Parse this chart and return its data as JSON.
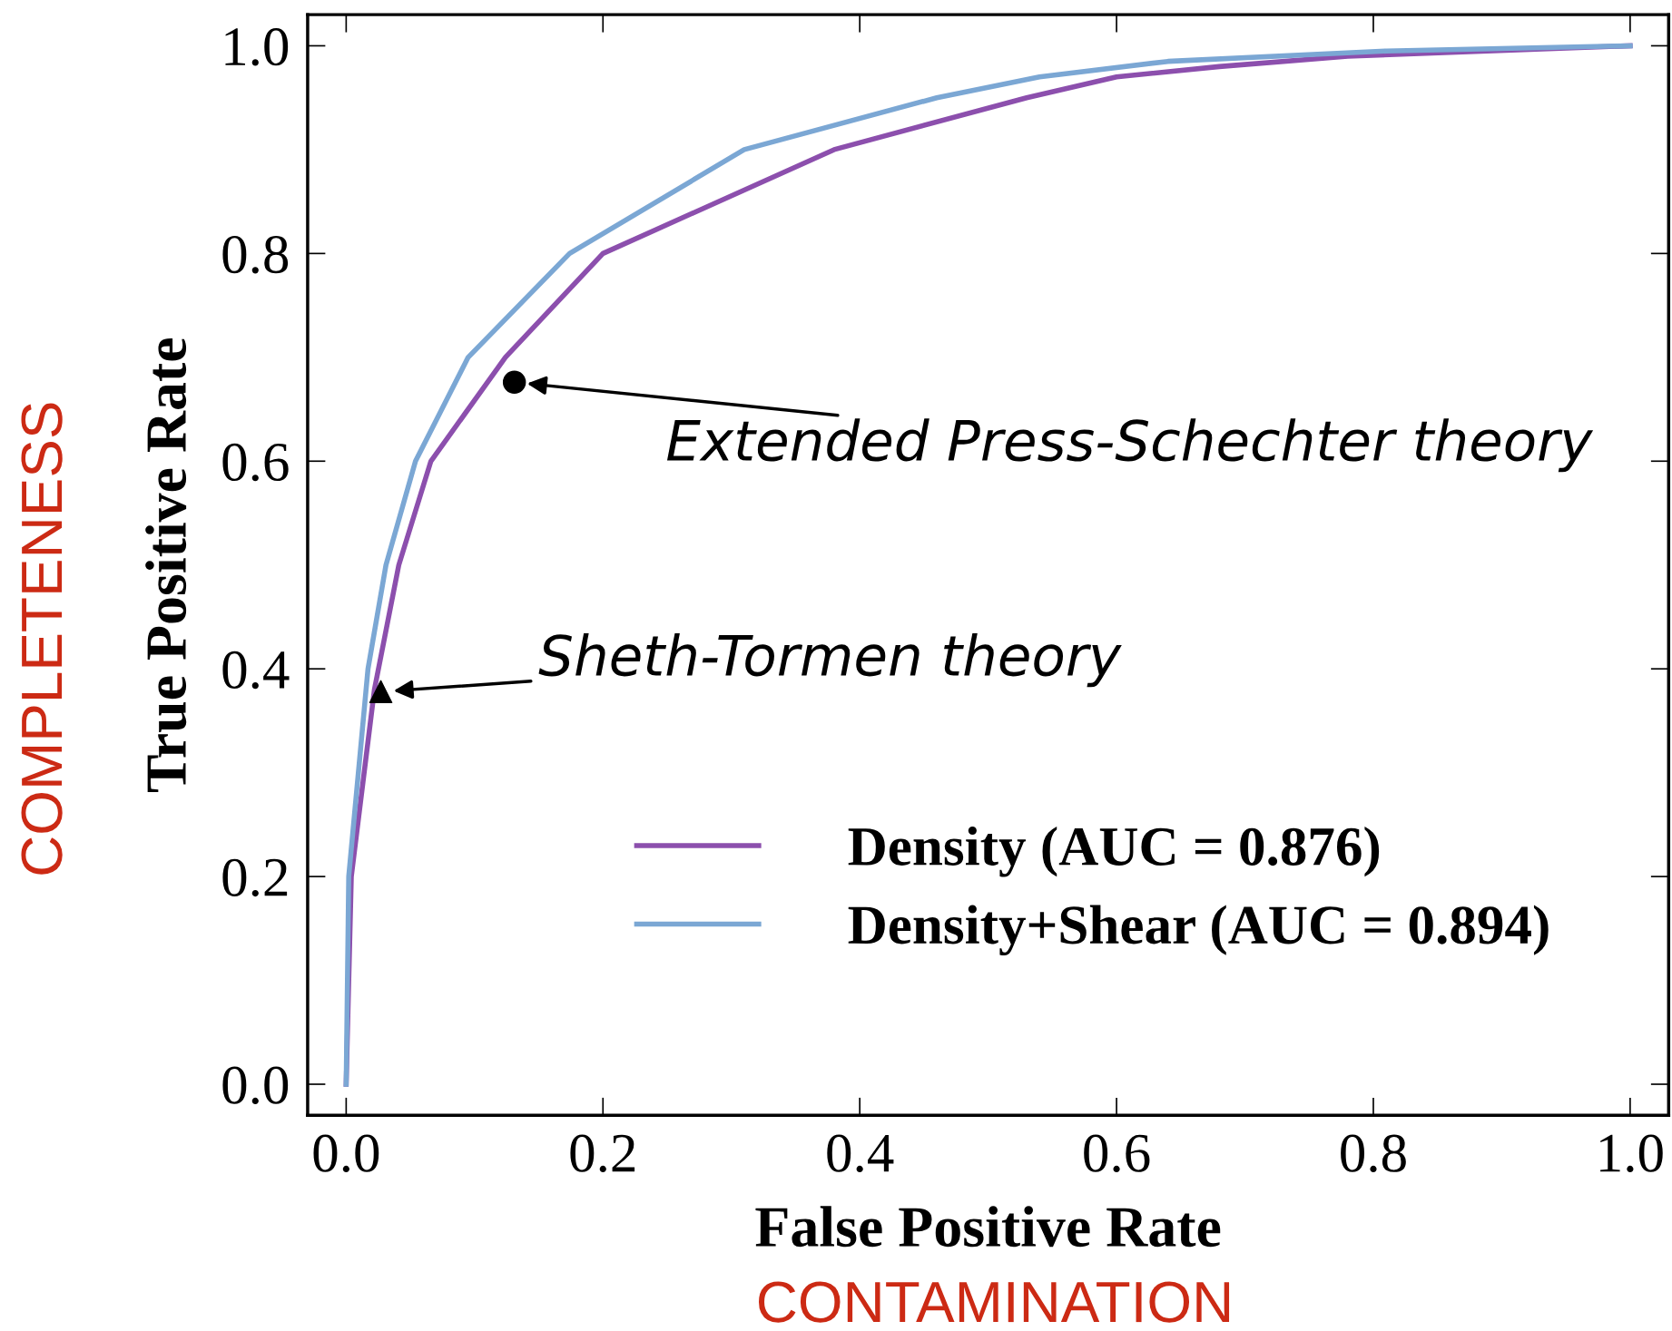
{
  "chart_data": {
    "type": "line",
    "xlabel": "False Positive Rate",
    "ylabel": "True Positive Rate",
    "xlim": [
      -0.03,
      1.03
    ],
    "ylim": [
      -0.03,
      1.03
    ],
    "xticks": [
      {
        "value": 0,
        "label": "0.0"
      },
      0.2,
      0.4,
      0.6,
      0.8,
      {
        "value": 1,
        "label": "1.0"
      }
    ],
    "yticks": [
      {
        "value": 0,
        "label": "0.0"
      },
      0.2,
      0.4,
      0.6,
      0.8,
      {
        "value": 1,
        "label": "1.0"
      }
    ],
    "grid": false,
    "legend": "bottom right",
    "series": [
      {
        "name": "Density (AUC = 0.876)",
        "color": "#8c4fad",
        "x": [
          0,
          0.004,
          0.022,
          0.041,
          0.066,
          0.124,
          0.2,
          0.38,
          0.53,
          0.6,
          0.68,
          0.78,
          1.0
        ],
        "values": [
          0,
          0.2,
          0.38,
          0.5,
          0.6,
          0.7,
          0.8,
          0.9,
          0.95,
          0.97,
          0.98,
          0.99,
          1.0
        ]
      },
      {
        "name": "Density+Shear (AUC = 0.894)",
        "color": "#7ba7d4",
        "x": [
          0,
          0.002,
          0.017,
          0.031,
          0.054,
          0.095,
          0.174,
          0.31,
          0.46,
          0.54,
          0.64,
          0.81,
          1.0
        ],
        "values": [
          0,
          0.2,
          0.4,
          0.5,
          0.6,
          0.7,
          0.8,
          0.9,
          0.95,
          0.97,
          0.985,
          0.995,
          1.0
        ]
      },
      {
        "type": "scatter",
        "marker": "circle",
        "color": "#000000",
        "x": [
          0.131
        ],
        "values": [
          0.676
        ]
      },
      {
        "type": "scatter",
        "marker": "triangle",
        "color": "#000000",
        "x": [
          0.027
        ],
        "values": [
          0.378
        ]
      }
    ],
    "annotations": [
      {
        "text": "Extended Press-Schechter theory",
        "x": 0.131,
        "y": 0.676
      },
      {
        "text": "Sheth-Tormen theory",
        "x": 0.027,
        "y": 0.378
      },
      "COMPLETENESS",
      "CONTAMINATION"
    ]
  }
}
